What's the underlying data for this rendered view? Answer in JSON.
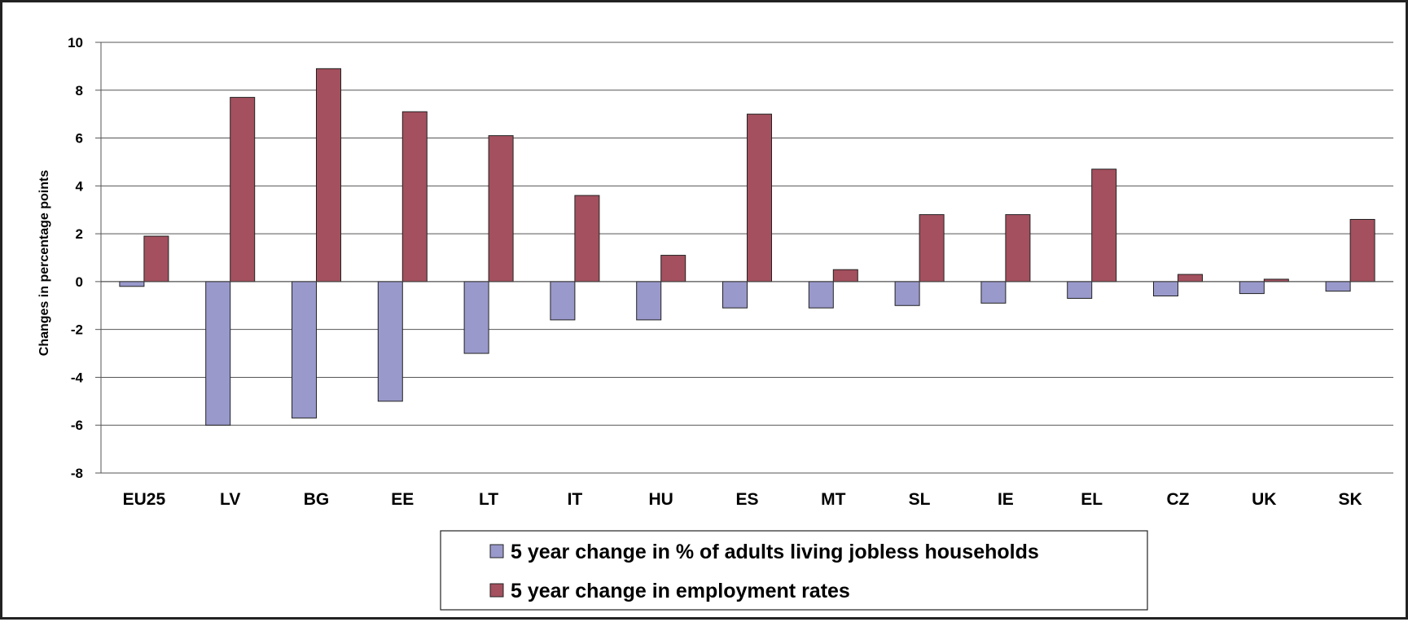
{
  "chart_data": {
    "type": "bar",
    "title": "",
    "xlabel": "",
    "ylabel": "Changes in percentage points",
    "ylim": [
      -8,
      10
    ],
    "yticks": [
      10,
      8,
      6,
      4,
      2,
      0,
      -2,
      -4,
      -6,
      -8
    ],
    "grid": true,
    "legend_position": "bottom-center",
    "categories": [
      "EU25",
      "LV",
      "BG",
      "EE",
      "LT",
      "IT",
      "HU",
      "ES",
      "MT",
      "SL",
      "IE",
      "EL",
      "CZ",
      "UK",
      "SK"
    ],
    "series": [
      {
        "name": "5 year change in % of adults living jobless households",
        "color": "#9999cc",
        "values": [
          -0.2,
          -6.0,
          -5.7,
          -5.0,
          -3.0,
          -1.6,
          -1.6,
          -1.1,
          -1.1,
          -1.0,
          -0.9,
          -0.7,
          -0.6,
          -0.5,
          -0.4
        ]
      },
      {
        "name": "5 year change in employment rates",
        "color": "#a4505e",
        "values": [
          1.9,
          7.7,
          8.9,
          7.1,
          6.1,
          3.6,
          1.1,
          7.0,
          0.5,
          2.8,
          2.8,
          4.7,
          0.3,
          0.1,
          2.6
        ]
      }
    ]
  }
}
